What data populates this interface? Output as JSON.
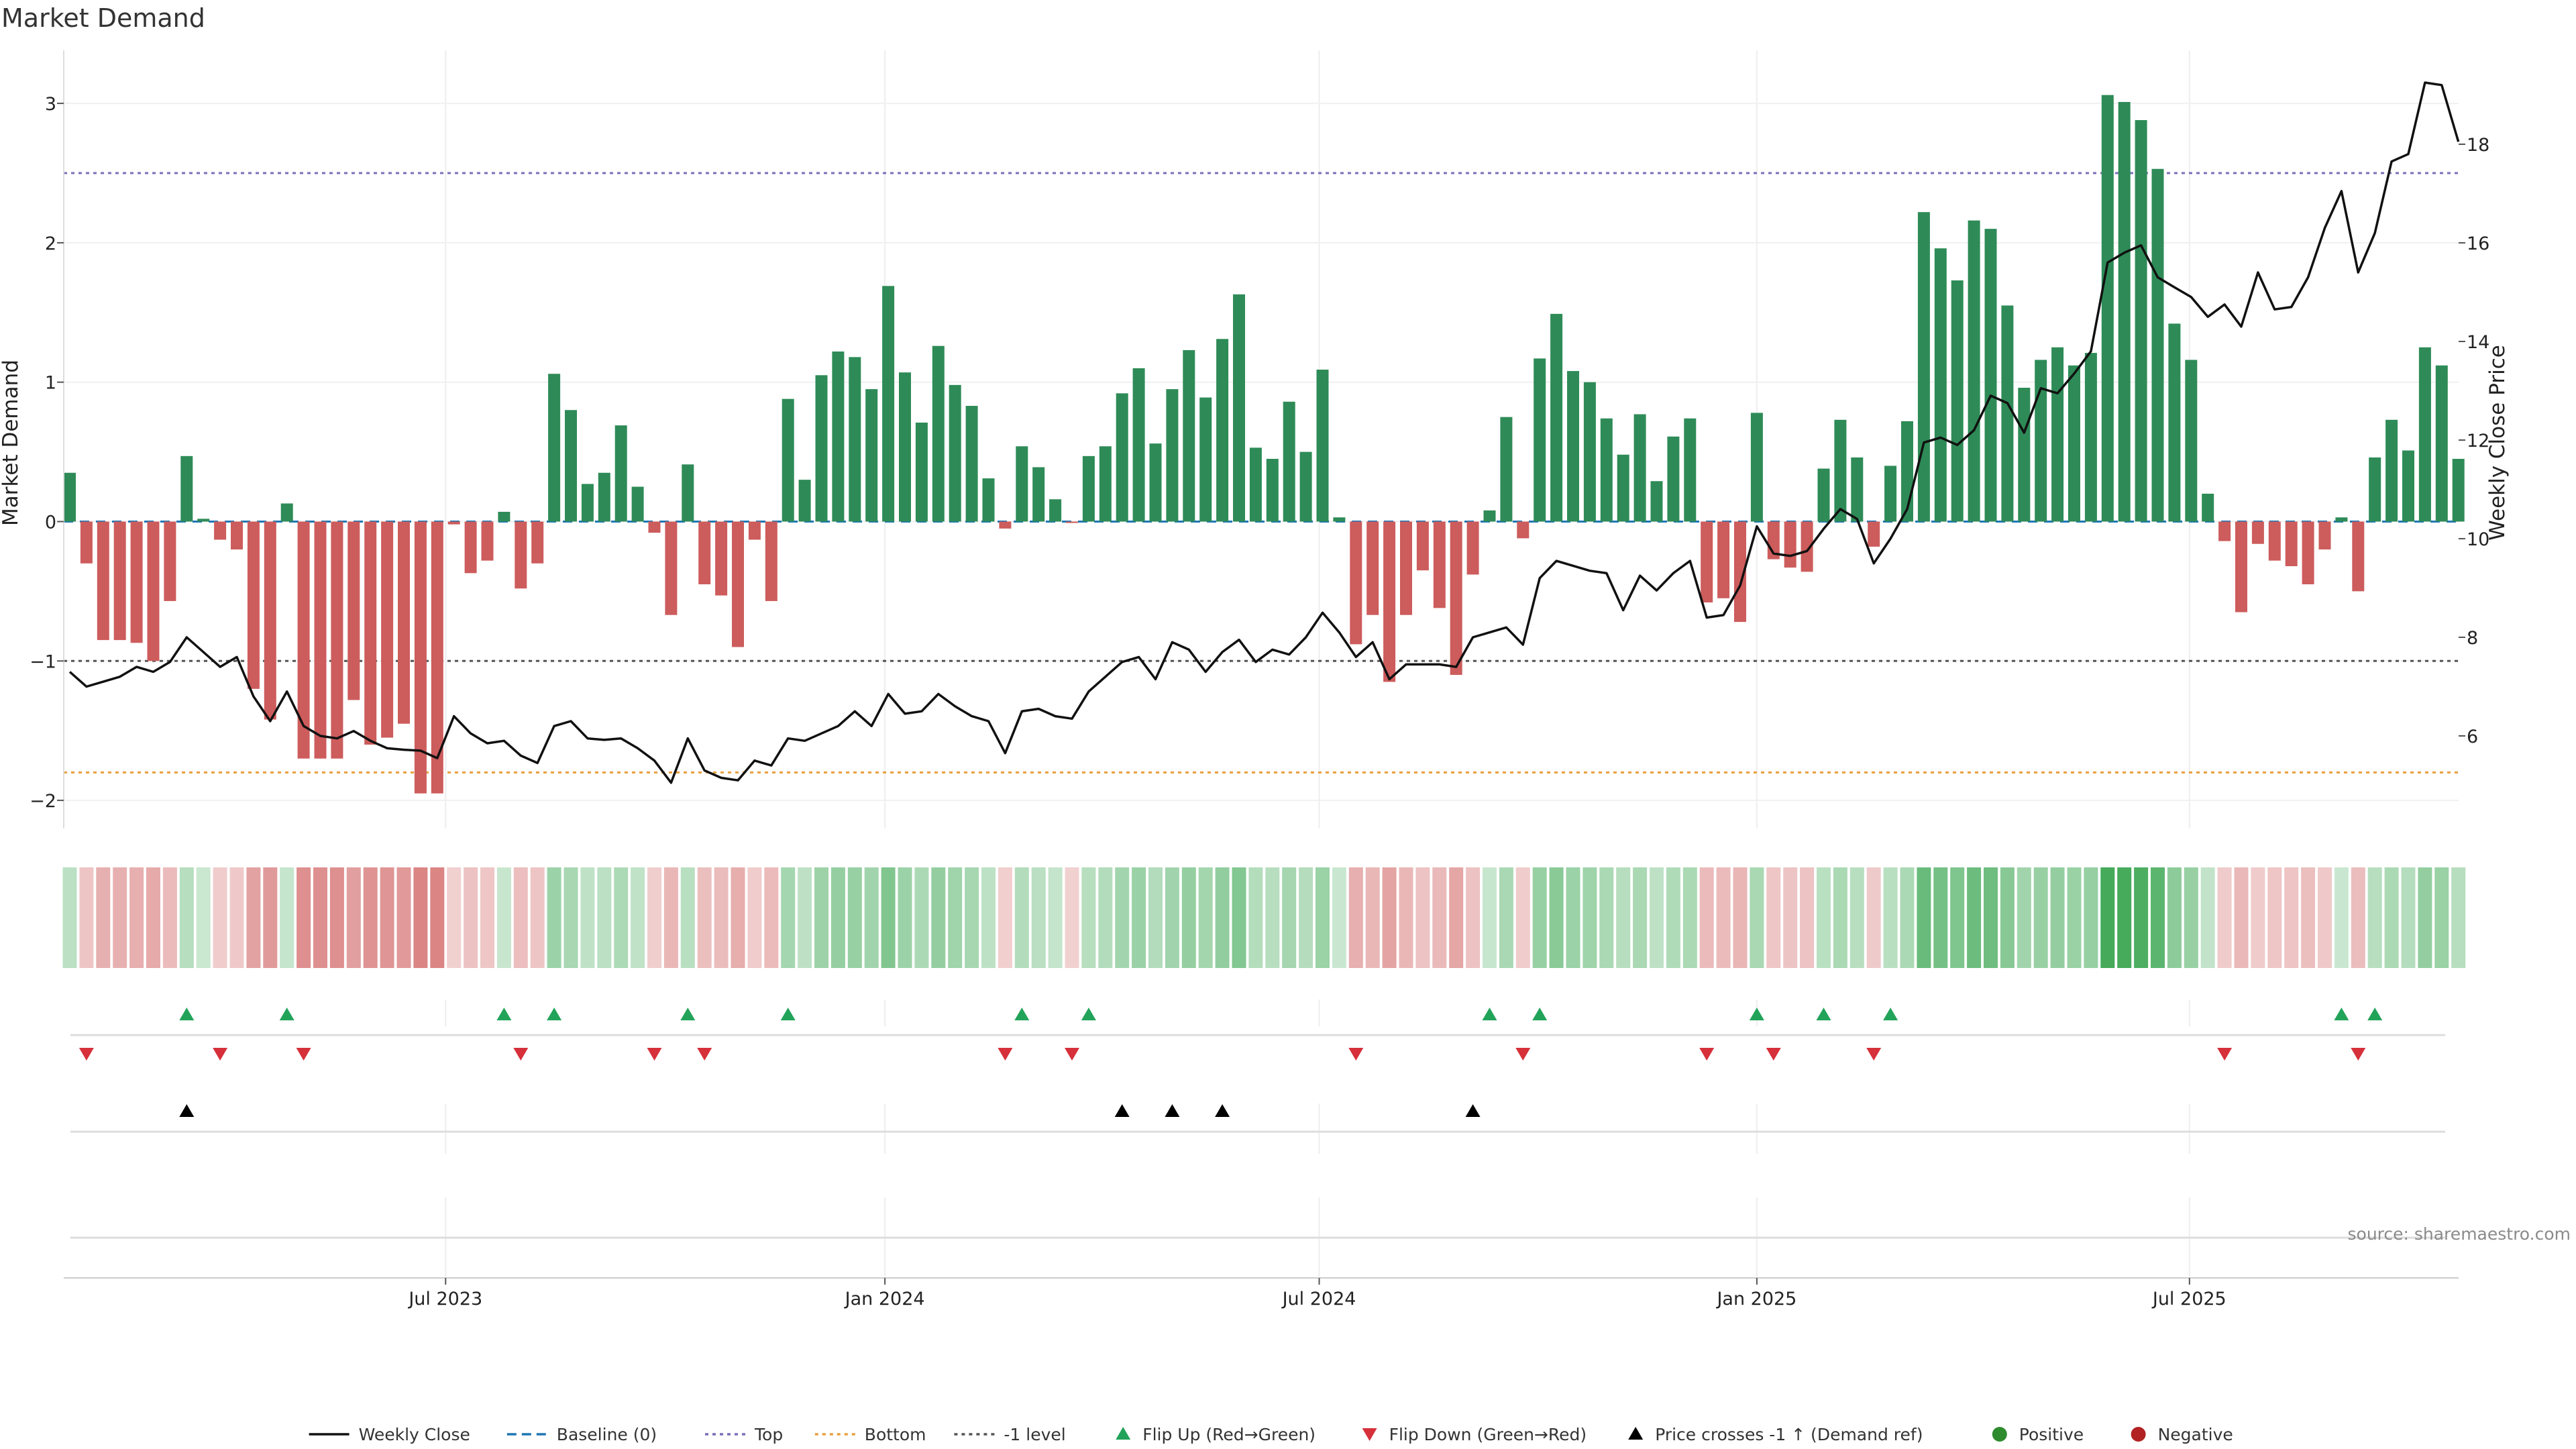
{
  "chart_data": {
    "type": "bar",
    "title": "Market Demand",
    "ylabel": "Market Demand",
    "y2label": "Weekly Close Price",
    "ylim": [
      -2.2,
      3.35
    ],
    "y2lim": [
      3.91,
      19.66
    ],
    "yticks": [
      {
        "value": -2,
        "label": "−2"
      },
      {
        "value": -1,
        "label": "−1"
      },
      {
        "value": 0,
        "label": "0"
      },
      {
        "value": 1,
        "label": "1"
      },
      {
        "value": 2,
        "label": "2"
      },
      {
        "value": 3,
        "label": "3"
      }
    ],
    "y2ticks": [
      6,
      8,
      10,
      12,
      14,
      16,
      18
    ],
    "xticks": [
      {
        "label": "Jul 2023",
        "week": 22.5
      },
      {
        "label": "Jan 2024",
        "week": 48.8
      },
      {
        "label": "Jul 2024",
        "week": 74.8
      },
      {
        "label": "Jan 2025",
        "week": 101.0
      },
      {
        "label": "Jul 2025",
        "week": 126.9
      }
    ],
    "reference_lines": [
      {
        "name": "Baseline (0)",
        "value": 0,
        "color": "#1f77b4",
        "style": "dashed"
      },
      {
        "name": "Top",
        "value": 2.5,
        "color": "#7b6fb8",
        "style": "dotted"
      },
      {
        "name": "Bottom",
        "value": -1.8,
        "color": "#e8a040",
        "style": "dotted"
      },
      {
        "name": "-1 level",
        "value": -1,
        "color": "#555555",
        "style": "dotted"
      }
    ],
    "demand": [
      0.35,
      -0.3,
      -0.85,
      -0.85,
      -0.87,
      -1.0,
      -0.57,
      0.47,
      0.02,
      -0.13,
      -0.2,
      -1.2,
      -1.42,
      0.13,
      -1.7,
      -1.7,
      -1.7,
      -1.28,
      -1.6,
      -1.55,
      -1.45,
      -1.95,
      -1.95,
      -0.02,
      -0.37,
      -0.28,
      0.07,
      -0.48,
      -0.3,
      1.06,
      0.8,
      0.27,
      0.35,
      0.69,
      0.25,
      -0.08,
      -0.67,
      0.41,
      -0.45,
      -0.53,
      -0.9,
      -0.13,
      -0.57,
      0.88,
      0.3,
      1.05,
      1.22,
      1.18,
      0.95,
      1.69,
      1.07,
      0.71,
      1.26,
      0.98,
      0.83,
      0.31,
      -0.05,
      0.54,
      0.39,
      0.16,
      -0.01,
      0.47,
      0.54,
      0.92,
      1.1,
      0.56,
      0.95,
      1.23,
      0.89,
      1.31,
      1.63,
      0.53,
      0.45,
      0.86,
      0.5,
      1.09,
      0.03,
      -0.88,
      -0.67,
      -1.15,
      -0.67,
      -0.35,
      -0.62,
      -1.1,
      -0.38,
      0.08,
      0.75,
      -0.12,
      1.17,
      1.49,
      1.08,
      1.0,
      0.74,
      0.48,
      0.77,
      0.29,
      0.61,
      0.74,
      -0.58,
      -0.55,
      -0.72,
      0.78,
      -0.27,
      -0.33,
      -0.36,
      0.38,
      0.73,
      0.46,
      -0.18,
      0.4,
      0.72,
      2.22,
      1.96,
      1.73,
      2.16,
      2.1,
      1.55,
      0.96,
      1.16,
      1.25,
      1.12,
      1.21,
      3.06,
      3.01,
      2.88,
      2.53,
      1.42,
      1.16,
      0.2,
      -0.14,
      -0.65,
      -0.16,
      -0.28,
      -0.32,
      -0.45,
      -0.2,
      0.03,
      -0.5,
      0.46,
      0.73,
      0.51,
      1.25,
      1.12,
      0.45
    ],
    "series": [
      {
        "name": "Weekly Close",
        "color": "#111111",
        "values": [
          7.3,
          7.0,
          7.1,
          7.2,
          7.4,
          7.3,
          7.5,
          8.0,
          7.7,
          7.4,
          7.6,
          6.8,
          6.3,
          6.9,
          6.2,
          6.0,
          5.95,
          6.1,
          5.9,
          5.75,
          5.72,
          5.7,
          5.55,
          6.4,
          6.05,
          5.85,
          5.9,
          5.6,
          5.45,
          6.2,
          6.3,
          5.95,
          5.92,
          5.95,
          5.75,
          5.5,
          5.05,
          5.95,
          5.3,
          5.15,
          5.1,
          5.5,
          5.4,
          5.95,
          5.9,
          6.05,
          6.2,
          6.5,
          6.2,
          6.85,
          6.45,
          6.5,
          6.85,
          6.6,
          6.4,
          6.3,
          5.65,
          6.5,
          6.55,
          6.4,
          6.35,
          6.9,
          7.2,
          7.5,
          7.6,
          7.15,
          7.9,
          7.75,
          7.3,
          7.7,
          7.95,
          7.5,
          7.75,
          7.65,
          8.0,
          8.5,
          8.1,
          7.6,
          7.9,
          7.15,
          7.45,
          7.45,
          7.45,
          7.4,
          8.0,
          8.1,
          8.2,
          7.85,
          9.2,
          9.55,
          9.45,
          9.35,
          9.3,
          8.55,
          9.25,
          8.95,
          9.3,
          9.55,
          8.4,
          8.45,
          9.05,
          10.25,
          9.7,
          9.65,
          9.75,
          10.2,
          10.6,
          10.4,
          9.5,
          10.0,
          10.6,
          11.95,
          12.05,
          11.9,
          12.2,
          12.9,
          12.75,
          12.15,
          13.05,
          12.95,
          13.35,
          13.8,
          15.6,
          15.8,
          15.95,
          15.3,
          15.1,
          14.9,
          14.5,
          14.75,
          14.3,
          15.4,
          14.65,
          14.7,
          15.3,
          16.3,
          17.05,
          15.4,
          16.2,
          17.65,
          17.8,
          19.25,
          19.2,
          18.05
        ]
      }
    ],
    "flip_up_weeks": [
      7,
      13,
      26,
      29,
      37,
      43,
      57,
      61,
      85,
      88,
      101,
      105,
      109,
      136,
      138
    ],
    "flip_down_weeks": [
      1,
      9,
      14,
      27,
      35,
      38,
      56,
      60,
      77,
      87,
      98,
      102,
      108,
      129,
      137
    ],
    "price_cross_weeks": [
      7,
      63,
      66,
      69,
      84
    ],
    "legend": [
      {
        "label": "Weekly Close",
        "kind": "line-solid",
        "color": "#111111"
      },
      {
        "label": "Baseline (0)",
        "kind": "line-dashed",
        "color": "#1f77b4"
      },
      {
        "label": "Top",
        "kind": "line-dotted",
        "color": "#7b6fb8"
      },
      {
        "label": "Bottom",
        "kind": "line-dotted",
        "color": "#e8a040"
      },
      {
        "label": "-1 level",
        "kind": "line-dotted",
        "color": "#555555"
      },
      {
        "label": "Flip Up (Red→Green)",
        "kind": "triangle-up",
        "color": "#22a35a"
      },
      {
        "label": "Flip Down (Green→Red)",
        "kind": "triangle-down",
        "color": "#d6303a"
      },
      {
        "label": "Price crosses -1 ↑ (Demand ref)",
        "kind": "triangle-up",
        "color": "#000000"
      },
      {
        "label": "Positive",
        "kind": "dot",
        "color": "#2e8b2e"
      },
      {
        "label": "Negative",
        "kind": "dot",
        "color": "#b22222"
      }
    ],
    "legend_placement": "bottom-center",
    "grid": true,
    "colors": {
      "positive_bar": "#2e8b57",
      "negative_bar": "#cd5c5c"
    }
  },
  "source": "source: sharemaestro.com"
}
